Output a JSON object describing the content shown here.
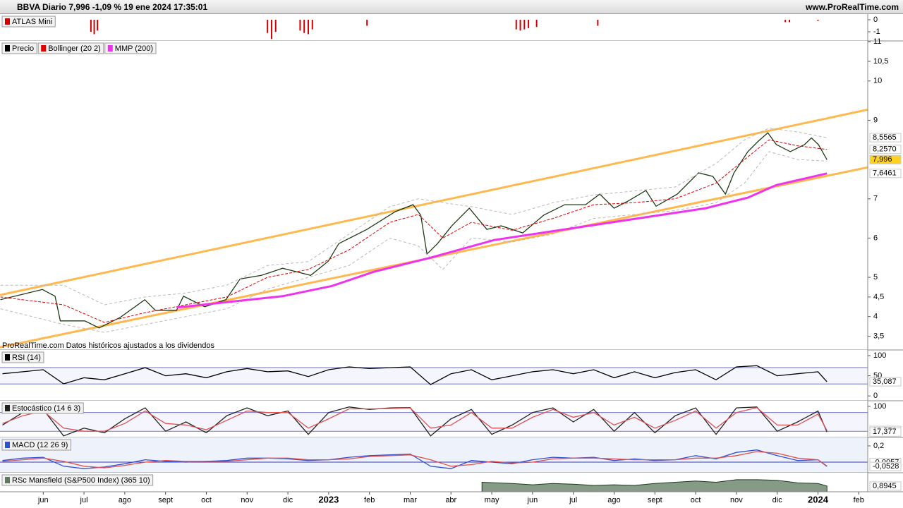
{
  "header": {
    "title": "BBVA Diario 7,996 -1,09 % 19 ene 2024 17:35:01",
    "site": "www.ProRealTime.com"
  },
  "chart_data": [
    {
      "type": "bar",
      "xlim": [
        -1.06,
        20.22
      ],
      "ylim": [
        -1.76,
        0.47
      ],
      "yticks": [
        0,
        -1
      ],
      "series": [
        {
          "name": "ATLAS Mini",
          "color": "#d00000",
          "x": [
            1.17,
            1.25,
            1.33,
            5.5,
            5.6,
            5.7,
            6.3,
            6.4,
            6.5,
            6.6,
            7.94,
            11.6,
            11.7,
            11.8,
            11.9,
            12.1,
            13.6,
            18.2,
            18.3,
            19.0
          ],
          "values": [
            -1.0,
            -1.2,
            -0.9,
            -1.1,
            -1.6,
            -1.0,
            -0.9,
            -1.1,
            -1.2,
            -0.8,
            -0.5,
            -0.8,
            -0.9,
            -0.8,
            -0.7,
            -0.6,
            -0.5,
            -0.2,
            -0.2,
            -0.1
          ]
        }
      ]
    },
    {
      "type": "line",
      "xlim": [
        -1.06,
        20.22
      ],
      "ylim": [
        3.15,
        11.02
      ],
      "yticks": [
        {
          "value": 3.5,
          "label": "3,5"
        },
        4,
        {
          "value": 4.5,
          "label": "4,5"
        },
        5,
        6,
        7,
        9,
        10,
        {
          "value": 10.5,
          "label": "10,5"
        },
        11
      ],
      "note": "ProRealTime.com Datos históricos ajustados a los dividendos",
      "trendlines": [
        {
          "color": "#ffb84d",
          "x": [
            -1.06,
            20.22
          ],
          "values": [
            4.55,
            9.27
          ]
        },
        {
          "color": "#ffb84d",
          "x": [
            -1.06,
            20.22
          ],
          "values": [
            3.22,
            7.8
          ]
        }
      ],
      "series": [
        {
          "name": "Precio",
          "color": "#1e3a14",
          "x": [
            -1.05,
            -0.02,
            0.29,
            0.42,
            1.02,
            1.37,
            1.89,
            2.49,
            2.75,
            3.27,
            3.44,
            3.96,
            4.48,
            4.83,
            5.35,
            5.87,
            6.56,
            6.99,
            7.25,
            7.94,
            8.63,
            9.07,
            9.26,
            9.41,
            9.67,
            10.02,
            10.45,
            10.88,
            11.23,
            11.76,
            12.27,
            12.79,
            13.3,
            13.65,
            14.0,
            14.34,
            14.78,
            15.03,
            15.55,
            16.07,
            16.42,
            16.73,
            16.94,
            17.28,
            17.54,
            17.77,
            17.98,
            18.32,
            18.67,
            18.84,
            19.01,
            19.22
          ],
          "values": [
            4.43,
            4.69,
            4.52,
            3.89,
            3.89,
            3.71,
            3.98,
            4.43,
            4.16,
            4.16,
            4.52,
            4.25,
            4.43,
            4.96,
            5.05,
            5.23,
            5.05,
            5.41,
            5.86,
            6.22,
            6.67,
            6.85,
            6.58,
            5.59,
            5.86,
            6.31,
            6.76,
            6.22,
            6.31,
            6.13,
            6.58,
            6.85,
            6.85,
            7.12,
            6.76,
            6.94,
            7.21,
            6.81,
            7.12,
            7.66,
            7.57,
            7.12,
            7.66,
            8.2,
            8.47,
            8.68,
            8.38,
            8.2,
            8.38,
            8.55,
            8.38,
            7.996
          ]
        },
        {
          "name": "Bollinger (20 2)",
          "color": "#e00000",
          "band_color": "#b8b8b8",
          "x": [
            -1.05,
            0.5,
            1.5,
            2.5,
            3.5,
            4.5,
            5.5,
            6.5,
            7.5,
            8.5,
            9.2,
            9.8,
            10.5,
            11.5,
            12.5,
            13.5,
            14.5,
            15.5,
            16.5,
            17.2,
            17.8,
            18.5,
            19.22
          ],
          "values": [
            4.5,
            4.3,
            3.85,
            4.1,
            4.3,
            4.5,
            5.0,
            5.2,
            5.7,
            6.4,
            6.6,
            6.0,
            6.4,
            6.2,
            6.5,
            6.85,
            6.9,
            7.0,
            7.4,
            8.0,
            8.5,
            8.35,
            8.257
          ],
          "upper": [
            4.8,
            4.8,
            4.3,
            4.5,
            4.6,
            4.8,
            5.3,
            5.4,
            6.1,
            6.8,
            7.0,
            6.9,
            6.8,
            6.6,
            6.9,
            7.1,
            7.2,
            7.3,
            7.9,
            8.5,
            8.8,
            8.7,
            8.5565
          ],
          "lower": [
            4.2,
            3.8,
            3.6,
            3.8,
            4.0,
            4.2,
            4.7,
            5.0,
            5.3,
            6.0,
            5.8,
            5.2,
            6.0,
            5.9,
            6.1,
            6.5,
            6.6,
            6.7,
            6.9,
            7.4,
            8.2,
            8.0,
            7.96
          ]
        },
        {
          "name": "MMP (200)",
          "color": "#ee33ee",
          "x": [
            3.27,
            5.87,
            7.08,
            8.11,
            9.5,
            11.06,
            12.79,
            14.52,
            16.25,
            17.28,
            17.98,
            19.22
          ],
          "values": [
            4.23,
            4.52,
            4.78,
            5.14,
            5.5,
            5.95,
            6.22,
            6.49,
            6.76,
            7.03,
            7.35,
            7.6461
          ]
        }
      ],
      "markers": [
        {
          "value": 8.5565,
          "label": "8,5565",
          "color": "#6a7fa8",
          "bg": "#ffffff"
        },
        {
          "value": 8.257,
          "label": "8,2570",
          "color": "#d00000",
          "bg": "#ffffff"
        },
        {
          "value": 7.996,
          "label": "7,996",
          "color": "#000000",
          "bg": "#ffd21f"
        },
        {
          "value": 7.6461,
          "label": "7,6461",
          "color": "#d020d0",
          "bg": "#ffffff"
        }
      ]
    },
    {
      "type": "line",
      "title": "RSI (14)",
      "xlim": [
        -1.06,
        20.22
      ],
      "ylim": [
        -12,
        114
      ],
      "yticks": [
        0,
        50,
        100
      ],
      "levels": [
        30,
        70
      ],
      "series": [
        {
          "color": "#000000",
          "x": [
            -1,
            -0.5,
            0,
            0.5,
            1,
            1.5,
            2,
            2.5,
            3,
            3.5,
            4,
            4.5,
            5,
            5.5,
            6,
            6.5,
            7,
            7.5,
            8,
            8.5,
            9,
            9.5,
            10,
            10.5,
            11,
            11.5,
            12,
            12.5,
            13,
            13.5,
            14,
            14.5,
            15,
            15.5,
            16,
            16.5,
            17,
            17.5,
            18,
            18.5,
            19,
            19.22
          ],
          "values": [
            55,
            60,
            65,
            30,
            45,
            40,
            55,
            70,
            50,
            55,
            45,
            60,
            68,
            60,
            62,
            48,
            65,
            72,
            68,
            70,
            72,
            28,
            55,
            65,
            40,
            50,
            60,
            65,
            55,
            65,
            45,
            60,
            45,
            58,
            65,
            40,
            72,
            75,
            50,
            55,
            60,
            35.087
          ]
        }
      ],
      "markers": [
        {
          "value": 35.087,
          "label": "35,087",
          "color": "#000000",
          "bg": "#ffffff"
        }
      ]
    },
    {
      "type": "line",
      "title": "Estocástico (14 6 3)",
      "xlim": [
        -1.06,
        20.22
      ],
      "ylim": [
        0,
        118
      ],
      "yticks": [
        100
      ],
      "levels": [
        20,
        80
      ],
      "series": [
        {
          "color": "#222222",
          "x": [
            -1,
            -0.5,
            0,
            0.5,
            1,
            1.5,
            2,
            2.5,
            3,
            3.5,
            4,
            4.5,
            5,
            5.5,
            6,
            6.5,
            7,
            7.5,
            8,
            8.5,
            9,
            9.5,
            10,
            10.5,
            11,
            11.5,
            12,
            12.5,
            13,
            13.5,
            14,
            14.5,
            15,
            15.5,
            16,
            16.5,
            17,
            17.5,
            18,
            18.5,
            19,
            19.22
          ],
          "values": [
            40,
            80,
            90,
            5,
            30,
            15,
            60,
            95,
            20,
            50,
            15,
            70,
            95,
            70,
            85,
            10,
            80,
            98,
            90,
            95,
            96,
            5,
            60,
            90,
            10,
            40,
            80,
            95,
            50,
            90,
            20,
            80,
            15,
            70,
            95,
            10,
            95,
            98,
            20,
            50,
            85,
            17.377
          ]
        },
        {
          "color": "#e05050",
          "x": [
            -1,
            -0.5,
            0,
            0.5,
            1,
            1.5,
            2,
            2.5,
            3,
            3.5,
            4,
            4.5,
            5,
            5.5,
            6,
            6.5,
            7,
            7.5,
            8,
            8.5,
            9,
            9.5,
            10,
            10.5,
            11,
            11.5,
            12,
            12.5,
            13,
            13.5,
            14,
            14.5,
            15,
            15.5,
            16,
            16.5,
            17,
            17.5,
            18,
            18.5,
            19,
            19.22
          ],
          "values": [
            45,
            70,
            85,
            30,
            20,
            20,
            45,
            85,
            45,
            40,
            25,
            55,
            85,
            80,
            80,
            30,
            60,
            92,
            92,
            93,
            95,
            30,
            40,
            80,
            30,
            30,
            65,
            90,
            65,
            80,
            40,
            65,
            30,
            55,
            85,
            30,
            80,
            96,
            40,
            40,
            75,
            22.551
          ]
        }
      ],
      "markers": [
        {
          "value": 22.551,
          "label": "22,551",
          "color": "#d00000",
          "bg": "#ffffff"
        },
        {
          "value": 17.377,
          "label": "17,377",
          "color": "#000000",
          "bg": "#ffffff"
        }
      ]
    },
    {
      "type": "line",
      "title": "MACD (12 26 9)",
      "xlim": [
        -1.06,
        20.22
      ],
      "ylim": [
        -0.13,
        0.304
      ],
      "yticks": [
        {
          "value": 0.2,
          "label": "0,2"
        }
      ],
      "levels": [
        0
      ],
      "series": [
        {
          "color": "#3050d0",
          "x": [
            -1,
            -0.5,
            0,
            0.5,
            1,
            1.5,
            2,
            2.5,
            3,
            3.5,
            4,
            4.5,
            5,
            5.5,
            6,
            6.5,
            7,
            7.5,
            8,
            8.5,
            9,
            9.5,
            10,
            10.5,
            11,
            11.5,
            12,
            12.5,
            13,
            13.5,
            14,
            14.5,
            15,
            15.5,
            16,
            16.5,
            17,
            17.5,
            18,
            18.5,
            19,
            19.22
          ],
          "values": [
            0.02,
            0.05,
            0.06,
            -0.05,
            -0.08,
            -0.06,
            -0.02,
            0.03,
            0.01,
            0.0,
            0.01,
            0.02,
            0.05,
            0.05,
            0.04,
            0.02,
            0.03,
            0.06,
            0.08,
            0.09,
            0.1,
            -0.05,
            -0.08,
            0.02,
            0.0,
            -0.02,
            0.03,
            0.06,
            0.05,
            0.06,
            0.02,
            0.04,
            0.02,
            0.03,
            0.08,
            0.04,
            0.12,
            0.15,
            0.08,
            0.02,
            0.03,
            -0.0528
          ]
        },
        {
          "color": "#e05050",
          "x": [
            -1,
            -0.5,
            0,
            0.5,
            1,
            1.5,
            2,
            2.5,
            3,
            3.5,
            4,
            4.5,
            5,
            5.5,
            6,
            6.5,
            7,
            7.5,
            8,
            8.5,
            9,
            9.5,
            10,
            10.5,
            11,
            11.5,
            12,
            12.5,
            13,
            13.5,
            14,
            14.5,
            15,
            15.5,
            16,
            16.5,
            17,
            17.5,
            18,
            18.5,
            19,
            19.22
          ],
          "values": [
            0.01,
            0.03,
            0.05,
            0.01,
            -0.05,
            -0.07,
            -0.04,
            0.0,
            0.02,
            0.01,
            0.01,
            0.01,
            0.03,
            0.05,
            0.05,
            0.03,
            0.03,
            0.04,
            0.07,
            0.08,
            0.09,
            0.03,
            -0.05,
            -0.03,
            0.01,
            -0.01,
            0.0,
            0.04,
            0.05,
            0.05,
            0.04,
            0.03,
            0.03,
            0.03,
            0.05,
            0.05,
            0.08,
            0.13,
            0.11,
            0.05,
            0.03,
            -0.0471
          ]
        }
      ],
      "markers": [
        {
          "value": -0.0057,
          "label": "-0,0057",
          "color": "#d00000",
          "bg": "#ffffff"
        },
        {
          "value": -0.0528,
          "label": "-0,0528",
          "color": "#3050d0",
          "bg": "#ffffff"
        }
      ]
    },
    {
      "type": "area",
      "title": "RSc Mansfield (S&P500 Index) (365 10)",
      "xlim": [
        -1.06,
        20.22
      ],
      "ylim": [
        0,
        3.0
      ],
      "series": [
        {
          "color": "#5e7a5e",
          "x": [
            10.76,
            11.5,
            12,
            12.5,
            13,
            13.5,
            14,
            14.5,
            15,
            15.5,
            16,
            16.5,
            17,
            17.5,
            18,
            18.5,
            19,
            19.22
          ],
          "values": [
            1.5,
            1.3,
            1.1,
            1.3,
            1.2,
            1.0,
            1.1,
            1.0,
            1.3,
            1.5,
            1.7,
            1.5,
            1.9,
            1.9,
            1.8,
            1.4,
            1.3,
            0.8945
          ]
        }
      ],
      "markers": [
        {
          "value": 0.8945,
          "label": "0,8945",
          "color": "#000000",
          "bg": "#ffffff"
        }
      ],
      "xticks": [
        {
          "value": 0,
          "label": "jun"
        },
        {
          "value": 1,
          "label": "jul"
        },
        {
          "value": 2,
          "label": "ago"
        },
        {
          "value": 3,
          "label": "sept"
        },
        {
          "value": 4,
          "label": "oct"
        },
        {
          "value": 5,
          "label": "nov"
        },
        {
          "value": 6,
          "label": "dic"
        },
        {
          "value": 7,
          "label": "2023"
        },
        {
          "value": 8,
          "label": "feb"
        },
        {
          "value": 9,
          "label": "mar"
        },
        {
          "value": 10,
          "label": "abr"
        },
        {
          "value": 11,
          "label": "may"
        },
        {
          "value": 12,
          "label": "jun"
        },
        {
          "value": 13,
          "label": "jul"
        },
        {
          "value": 14,
          "label": "ago"
        },
        {
          "value": 15,
          "label": "sept"
        },
        {
          "value": 16,
          "label": "oct"
        },
        {
          "value": 17,
          "label": "nov"
        },
        {
          "value": 18,
          "label": "dic"
        },
        {
          "value": 19,
          "label": "2024"
        },
        {
          "value": 20,
          "label": "feb"
        }
      ]
    }
  ]
}
